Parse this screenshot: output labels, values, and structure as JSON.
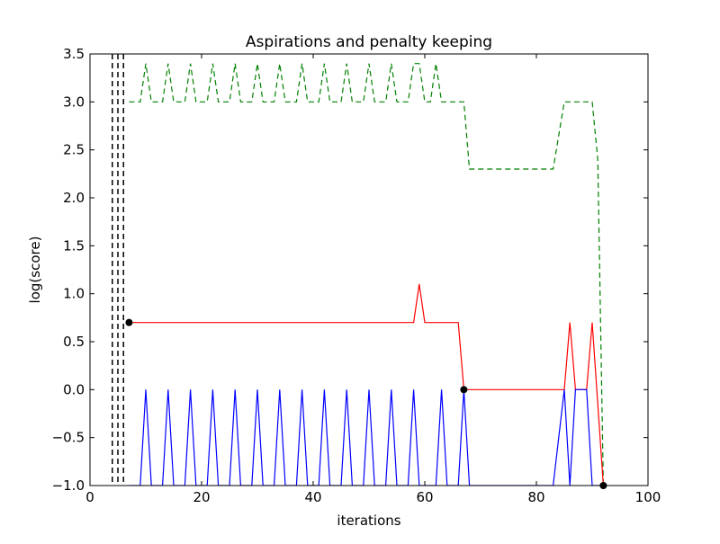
{
  "chart_data": {
    "type": "line",
    "title": "Aspirations and penalty keeping",
    "xlabel": "iterations",
    "ylabel": "log(score)",
    "xlim": [
      0,
      100
    ],
    "ylim": [
      -1.0,
      3.5
    ],
    "xticks": [
      0,
      20,
      40,
      60,
      80,
      100
    ],
    "xtick_labels": [
      "0",
      "20",
      "40",
      "60",
      "80",
      "100"
    ],
    "yticks": [
      -1.0,
      -0.5,
      0.0,
      0.5,
      1.0,
      1.5,
      2.0,
      2.5,
      3.0,
      3.5
    ],
    "ytick_labels": [
      "−1.0",
      "−0.5",
      "0.0",
      "0.5",
      "1.0",
      "1.5",
      "2.0",
      "2.5",
      "3.0",
      "3.5"
    ],
    "grid": false,
    "vertical_lines": {
      "x": [
        4,
        5,
        6
      ],
      "color": "#000000",
      "style": "dashed"
    },
    "series": [
      {
        "color": "#008000",
        "style": "dashed",
        "x": [
          7,
          9,
          10,
          11,
          13,
          14,
          15,
          17,
          18,
          19,
          21,
          22,
          23,
          25,
          26,
          27,
          29,
          30,
          31,
          33,
          34,
          35,
          37,
          38,
          39,
          41,
          42,
          43,
          45,
          46,
          47,
          49,
          50,
          51,
          53,
          54,
          55,
          57,
          58,
          59,
          60,
          61,
          62,
          63,
          64,
          65,
          66,
          67,
          68,
          83,
          85,
          90,
          91,
          92
        ],
        "y": [
          3.0,
          3.0,
          3.4,
          3.0,
          3.0,
          3.4,
          3.0,
          3.0,
          3.4,
          3.0,
          3.0,
          3.4,
          3.0,
          3.0,
          3.4,
          3.0,
          3.0,
          3.4,
          3.0,
          3.0,
          3.4,
          3.0,
          3.0,
          3.4,
          3.0,
          3.0,
          3.4,
          3.0,
          3.0,
          3.4,
          3.0,
          3.0,
          3.4,
          3.0,
          3.0,
          3.4,
          3.0,
          3.0,
          3.4,
          3.4,
          3.0,
          3.0,
          3.4,
          3.0,
          3.0,
          3.0,
          3.0,
          3.0,
          2.3,
          2.3,
          3.0,
          3.0,
          2.4,
          -1.0
        ]
      },
      {
        "color": "#ff0000",
        "style": "solid",
        "x": [
          7,
          58,
          59,
          60,
          66,
          67,
          85,
          86,
          87,
          89,
          90,
          92
        ],
        "y": [
          0.7,
          0.7,
          1.1,
          0.7,
          0.7,
          0.0,
          0.0,
          0.7,
          0.0,
          0.0,
          0.7,
          -1.0
        ]
      },
      {
        "color": "#0000ff",
        "style": "solid",
        "x": [
          7,
          9,
          10,
          11,
          13,
          14,
          15,
          17,
          18,
          19,
          21,
          22,
          23,
          25,
          26,
          27,
          29,
          30,
          31,
          33,
          34,
          35,
          37,
          38,
          39,
          41,
          42,
          43,
          45,
          46,
          47,
          49,
          50,
          51,
          53,
          54,
          55,
          57,
          58,
          59,
          62,
          63,
          64,
          66,
          67,
          68,
          83,
          85,
          86,
          87,
          89,
          90,
          92
        ],
        "y": [
          -1.0,
          -1.0,
          0.0,
          -1.0,
          -1.0,
          0.0,
          -1.0,
          -1.0,
          0.0,
          -1.0,
          -1.0,
          0.0,
          -1.0,
          -1.0,
          0.0,
          -1.0,
          -1.0,
          0.0,
          -1.0,
          -1.0,
          0.0,
          -1.0,
          -1.0,
          0.0,
          -1.0,
          -1.0,
          0.0,
          -1.0,
          -1.0,
          0.0,
          -1.0,
          -1.0,
          0.0,
          -1.0,
          -1.0,
          0.0,
          -1.0,
          -1.0,
          0.0,
          -1.0,
          -1.0,
          0.0,
          -1.0,
          -1.0,
          0.0,
          -1.0,
          -1.0,
          0.0,
          -1.0,
          0.0,
          0.0,
          -1.0,
          -1.0
        ]
      },
      {
        "color": "#000000",
        "style": "markers",
        "x": [
          7,
          67,
          92
        ],
        "y": [
          0.7,
          0.0,
          -1.0
        ]
      }
    ]
  }
}
